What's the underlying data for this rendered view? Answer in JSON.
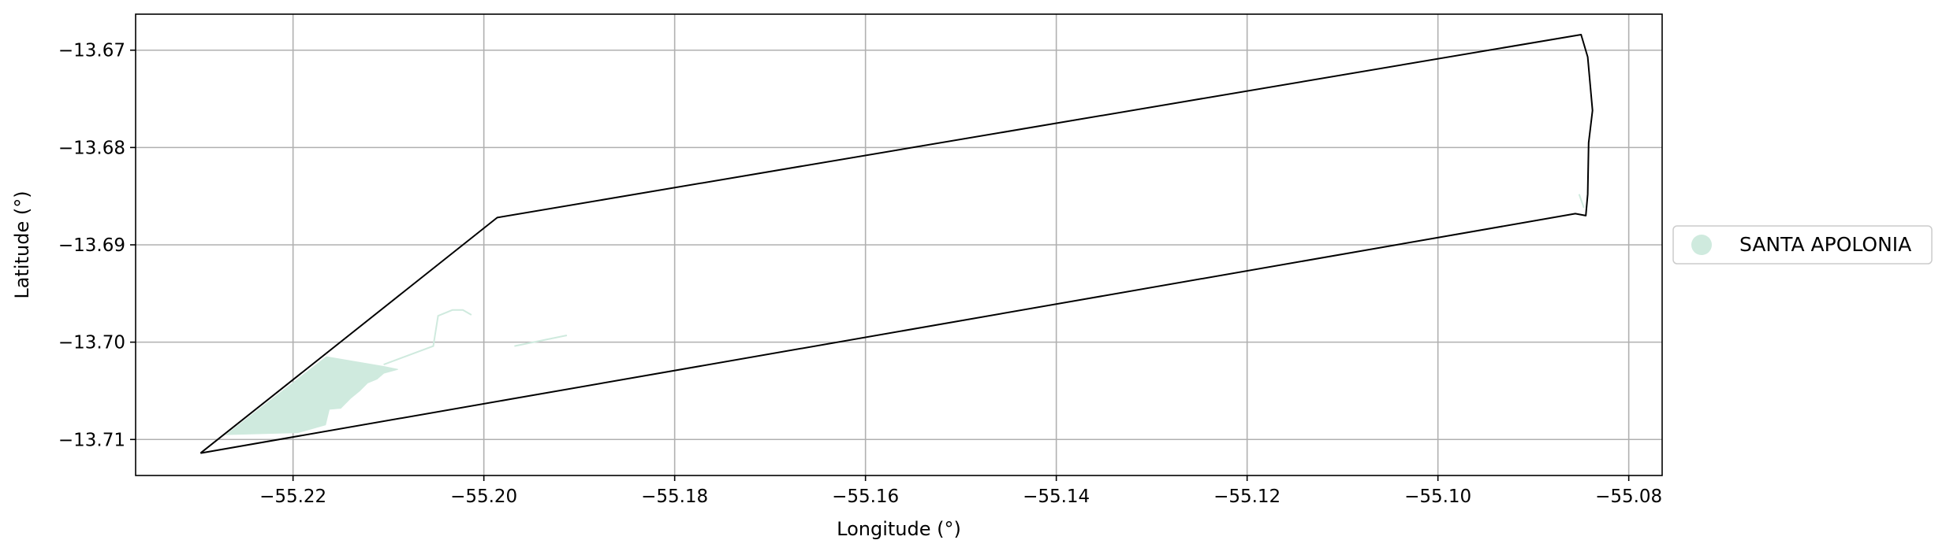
{
  "chart_data": {
    "type": "map",
    "xlabel": "Longitude (°)",
    "ylabel": "Latitude (°)",
    "xlim": [
      -55.2365,
      -55.0765
    ],
    "ylim": [
      -13.7137,
      -13.6663
    ],
    "grid": true,
    "legend_placement": "center-right",
    "x_ticks": [
      -55.22,
      -55.2,
      -55.18,
      -55.16,
      -55.14,
      -55.12,
      -55.1,
      -55.08
    ],
    "x_tick_labels": [
      "−55.22",
      "−55.20",
      "−55.18",
      "−55.16",
      "−55.14",
      "−55.12",
      "−55.10",
      "−55.08"
    ],
    "y_ticks": [
      -13.67,
      -13.68,
      -13.69,
      -13.7,
      -13.71
    ],
    "y_tick_labels": [
      "−13.67",
      "−13.68",
      "−13.69",
      "−13.70",
      "−13.71"
    ],
    "legend": [
      {
        "name": "SANTA APOLONIA",
        "color": "#cfeade"
      }
    ],
    "boundary": {
      "stroke": "#000000",
      "coords": [
        [
          -55.2297,
          -13.7114
        ],
        [
          -55.1986,
          -13.6872
        ],
        [
          -55.085,
          -13.6684
        ],
        [
          -55.0843,
          -13.6707
        ],
        [
          -55.0838,
          -13.6762
        ],
        [
          -55.0842,
          -13.6795
        ],
        [
          -55.0843,
          -13.6848
        ],
        [
          -55.0845,
          -13.687
        ],
        [
          -55.0856,
          -13.6868
        ],
        [
          -55.2297,
          -13.7114
        ]
      ]
    },
    "area": {
      "name": "SANTA APOLONIA",
      "fill": "#cfeade",
      "coords": [
        [
          -55.227,
          -13.7095
        ],
        [
          -55.2165,
          -13.7015
        ],
        [
          -55.2105,
          -13.7025
        ],
        [
          -55.209,
          -13.7028
        ],
        [
          -55.2105,
          -13.7032
        ],
        [
          -55.2112,
          -13.7038
        ],
        [
          -55.2122,
          -13.7042
        ],
        [
          -55.213,
          -13.705
        ],
        [
          -55.214,
          -13.7058
        ],
        [
          -55.215,
          -13.7068
        ],
        [
          -55.2162,
          -13.7069
        ],
        [
          -55.2166,
          -13.7085
        ],
        [
          -55.2195,
          -13.7093
        ],
        [
          -55.227,
          -13.7095
        ]
      ]
    },
    "streams": [
      {
        "stroke": "#cfeade",
        "coords": [
          [
            -55.2105,
            -13.7023
          ],
          [
            -55.2053,
            -13.7004
          ],
          [
            -55.2048,
            -13.6973
          ],
          [
            -55.2033,
            -13.6967
          ],
          [
            -55.2022,
            -13.6967
          ],
          [
            -55.2013,
            -13.6972
          ]
        ]
      },
      {
        "stroke": "#cfeade",
        "coords": [
          [
            -55.1968,
            -13.7004
          ],
          [
            -55.1913,
            -13.6993
          ]
        ]
      },
      {
        "stroke": "#cfeade",
        "coords": [
          [
            -55.0852,
            -13.6848
          ],
          [
            -55.0847,
            -13.6862
          ]
        ]
      }
    ]
  }
}
